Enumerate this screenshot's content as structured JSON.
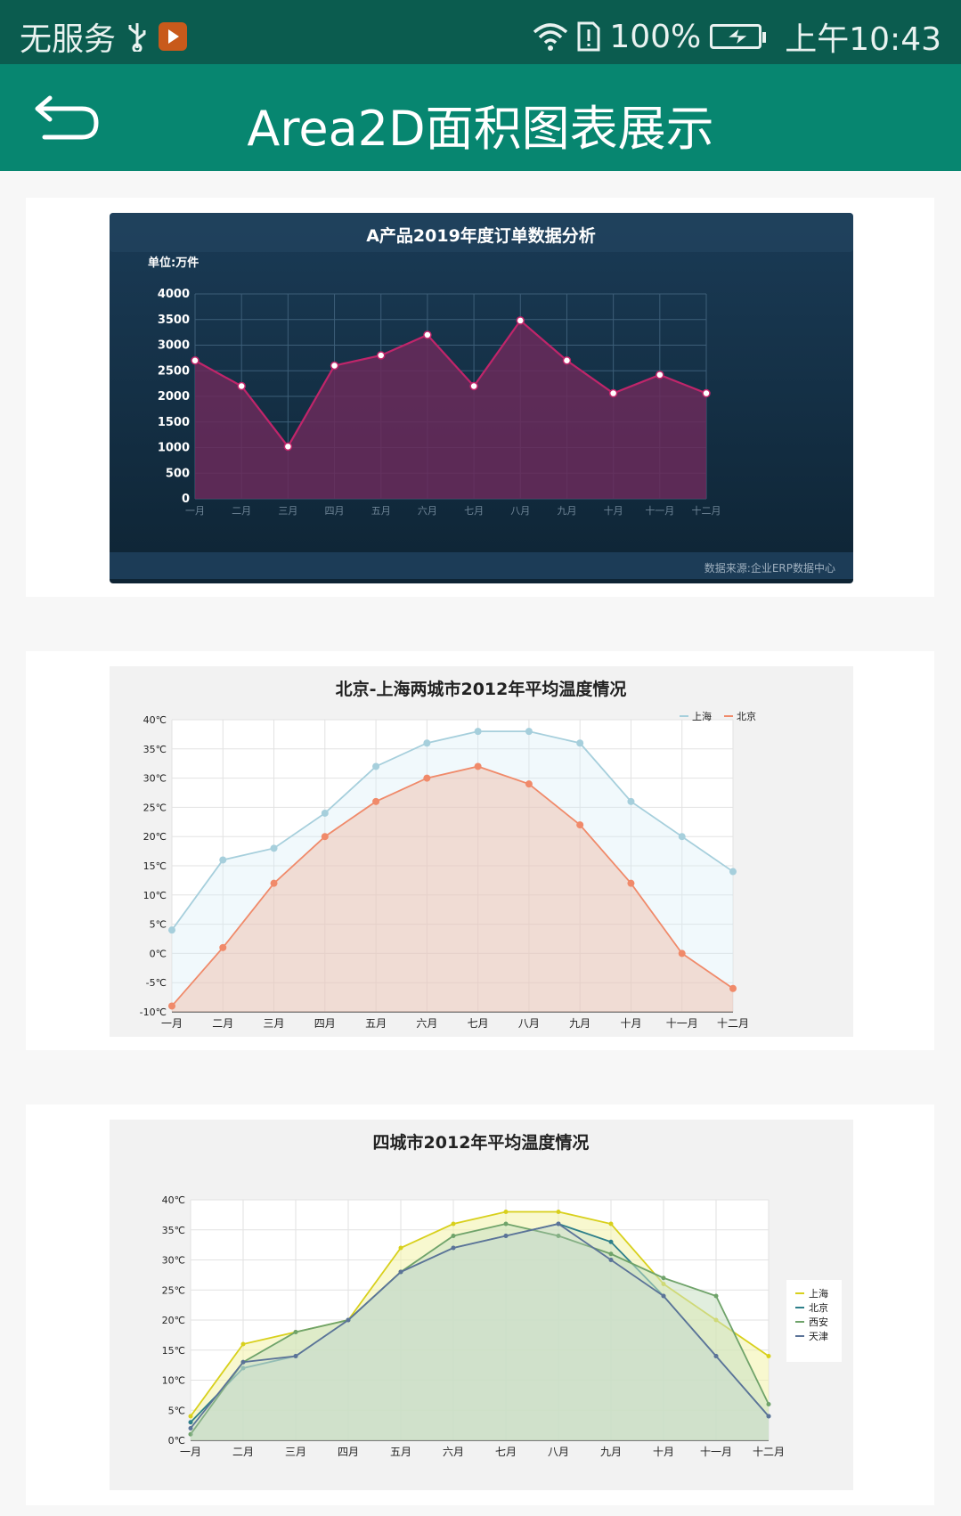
{
  "status_bar": {
    "carrier": "无服务",
    "usb_icon": "usb-icon",
    "app_icon": "play-app-icon",
    "wifi_icon": "wifi-icon",
    "sim_icon": "sim-alert-icon",
    "battery_percent": "100%",
    "battery_icon": "battery-charging-icon",
    "time": "上午10:43"
  },
  "app_bar": {
    "back_icon": "back-arrow-icon",
    "title": "Area2D面积图表展示",
    "background": "#078670"
  },
  "charts": {
    "chart1": {
      "title": "A产品2019年度订单数据分析",
      "unit": "单位:万件",
      "source": "数据来源:企业ERP数据中心",
      "y_ticks": [
        "4000",
        "3500",
        "3000",
        "2500",
        "2000",
        "1500",
        "1000",
        "500",
        "0"
      ],
      "x_ticks": [
        "一月",
        "二月",
        "三月",
        "四月",
        "五月",
        "六月",
        "七月",
        "八月",
        "九月",
        "十月",
        "十一月",
        "十二月"
      ]
    },
    "chart2": {
      "title": "北京-上海两城市2012年平均温度情况",
      "y_ticks": [
        "40℃",
        "35℃",
        "30℃",
        "25℃",
        "20℃",
        "15℃",
        "10℃",
        "5℃",
        "0℃",
        "-5℃",
        "-10℃"
      ],
      "x_ticks": [
        "一月",
        "二月",
        "三月",
        "四月",
        "五月",
        "六月",
        "七月",
        "八月",
        "九月",
        "十月",
        "十一月",
        "十二月"
      ],
      "legend": [
        "上海",
        "北京"
      ]
    },
    "chart3": {
      "title": "四城市2012年平均温度情况",
      "y_ticks": [
        "40℃",
        "35℃",
        "30℃",
        "25℃",
        "20℃",
        "15℃",
        "10℃",
        "5℃",
        "0℃"
      ],
      "x_ticks": [
        "一月",
        "二月",
        "三月",
        "四月",
        "五月",
        "六月",
        "七月",
        "八月",
        "九月",
        "十月",
        "十一月",
        "十二月"
      ],
      "legend": [
        "上海",
        "北京",
        "西安",
        "天津"
      ]
    }
  },
  "chart_data": [
    {
      "type": "area",
      "title": "A产品2019年度订单数据分析",
      "ylabel": "单位:万件",
      "categories": [
        "一月",
        "二月",
        "三月",
        "四月",
        "五月",
        "六月",
        "七月",
        "八月",
        "九月",
        "十月",
        "十一月",
        "十二月"
      ],
      "ylim": [
        0,
        4000
      ],
      "grid": true,
      "series": [
        {
          "values": [
            2700,
            2200,
            1020,
            2600,
            2800,
            3200,
            2200,
            3480,
            2700,
            2060,
            2420,
            2060
          ],
          "color": "#c0256a"
        }
      ]
    },
    {
      "type": "area",
      "title": "北京-上海两城市2012年平均温度情况",
      "categories": [
        "一月",
        "二月",
        "三月",
        "四月",
        "五月",
        "六月",
        "七月",
        "八月",
        "九月",
        "十月",
        "十一月",
        "十二月"
      ],
      "ylim": [
        -10,
        40
      ],
      "grid": true,
      "legend_position": "top-right",
      "series": [
        {
          "name": "上海",
          "values": [
            4,
            16,
            18,
            24,
            32,
            36,
            38,
            38,
            36,
            26,
            20,
            14
          ],
          "color": "#a6cfdc"
        },
        {
          "name": "北京",
          "values": [
            -9,
            1,
            12,
            20,
            26,
            30,
            32,
            29,
            22,
            12,
            0,
            -6
          ],
          "color": "#f08a6a"
        }
      ]
    },
    {
      "type": "area",
      "title": "四城市2012年平均温度情况",
      "categories": [
        "一月",
        "二月",
        "三月",
        "四月",
        "五月",
        "六月",
        "七月",
        "八月",
        "九月",
        "十月",
        "十一月",
        "十二月"
      ],
      "ylim": [
        0,
        40
      ],
      "grid": true,
      "legend_position": "right",
      "series": [
        {
          "name": "上海",
          "values": [
            4,
            16,
            18,
            20,
            32,
            36,
            38,
            38,
            36,
            26,
            20,
            14
          ],
          "color": "#d8d01c"
        },
        {
          "name": "北京",
          "values": [
            3,
            12,
            14,
            20,
            28,
            32,
            34,
            36,
            33,
            24,
            14,
            4
          ],
          "color": "#2d7f8a"
        },
        {
          "name": "西安",
          "values": [
            1,
            13,
            18,
            20,
            28,
            34,
            36,
            34,
            31,
            27,
            24,
            6
          ],
          "color": "#6fa36a"
        },
        {
          "name": "天津",
          "values": [
            2,
            13,
            14,
            20,
            28,
            32,
            34,
            36,
            30,
            24,
            14,
            4
          ],
          "color": "#5b7398"
        }
      ]
    }
  ]
}
